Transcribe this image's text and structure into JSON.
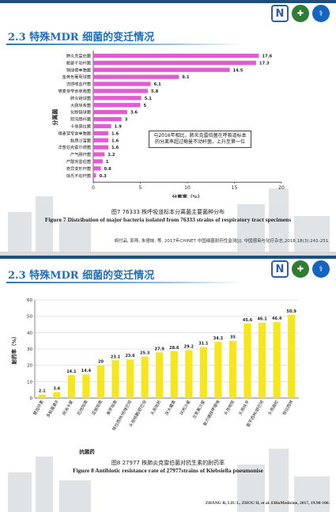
{
  "slide1": {
    "title": "2.3 特殊MDR 细菌的变迁情况",
    "caption_cn": "图7 76333 株呼吸道标本分离菌主要菌种分布",
    "caption_en": "Figure 7 Distribution of major bacteria isolated from 76333 strains of respiratory tract specimens",
    "citation": "胡付品, 郭燕, 朱德妹, 等. 2017年CHINET 中国细菌耐药性监测[J]. 中国感染与化疗杂志,2018,18(3):241-251.",
    "annotation": "与2016年相比，肺炎克雷伯菌在呼吸道标本的分离率超过鲍曼不动杆菌，上升至第一位"
  },
  "slide2": {
    "title": "2.3 特殊MDR 细菌的变迁情况",
    "caption_cn": "图8 27977 株肺炎克雷伯菌对抗生素的耐药率",
    "caption_en": "Figure 8 Antibiotic resistance rate of 27977strains of Klebsiella pneumonise",
    "citation": "ZHANG R, LIU L, ZHOU H, et al. EBioMedicine, 2017, 19:98-106."
  },
  "logos": {
    "n": "N",
    "cross": "✚",
    "med": "⚕"
  },
  "chart_data": [
    {
      "type": "bar",
      "orientation": "horizontal",
      "categories": [
        "肺炎克雷伯菌",
        "鲍曼不动杆菌",
        "铜绿假单胞菌",
        "金黄色葡萄球菌",
        "流感嗜血杆菌",
        "嗜麦芽窄食单胞菌",
        "肺炎链球菌",
        "大肠埃希菌",
        "化脓链球菌",
        "阴沟肠杆菌",
        "卡他莫拉菌",
        "嗜麦芽窄食单胞菌",
        "黏质沙雷菌",
        "洋葱伯克霍尔德菌",
        "产气肠杆菌",
        "产酸克雷伯菌",
        "奇异变形杆菌",
        "琼氏不动杆菌"
      ],
      "values": [
        17.6,
        17.3,
        14.5,
        9.1,
        6.1,
        5.8,
        5.1,
        5,
        3.6,
        3,
        1.9,
        1.6,
        1.6,
        1.6,
        1.2,
        1,
        0.8,
        0.3
      ],
      "xlabel": "分离率（%）",
      "ylabel": "分离菌",
      "xlim": [
        0,
        20
      ],
      "xticks": [
        0,
        5,
        10,
        15,
        20
      ],
      "bar_color": "#e35bd3",
      "grid": false
    },
    {
      "type": "bar",
      "orientation": "vertical",
      "categories": [
        "替加环素",
        "多粘菌素B",
        "阿米卡星",
        "厄他培南",
        "亚胺培南",
        "美罗培南",
        "哌拉西林/他唑巴坦",
        "头孢哌酮/舒巴坦",
        "头孢吡肟",
        "庆大霉素",
        "环丙沙星",
        "左氧氟沙星",
        "复方磺胺甲噁唑",
        "头孢他啶",
        "头孢呋辛",
        "氨苄西林/舒巴坦",
        "头孢曲松",
        "哌拉西林"
      ],
      "values": [
        2.1,
        3.6,
        14.1,
        14.4,
        20,
        23.1,
        23.6,
        25.3,
        27.9,
        28.6,
        29.2,
        31.1,
        34.3,
        35,
        45.6,
        46.1,
        46.4,
        50.9
      ],
      "xlabel": "抗菌药",
      "ylabel": "耐药率（%）",
      "ylim": [
        0,
        60
      ],
      "yticks": [
        0,
        10,
        20,
        30,
        40,
        50,
        60
      ],
      "bar_color": "#f5e61e",
      "grid": true
    }
  ]
}
